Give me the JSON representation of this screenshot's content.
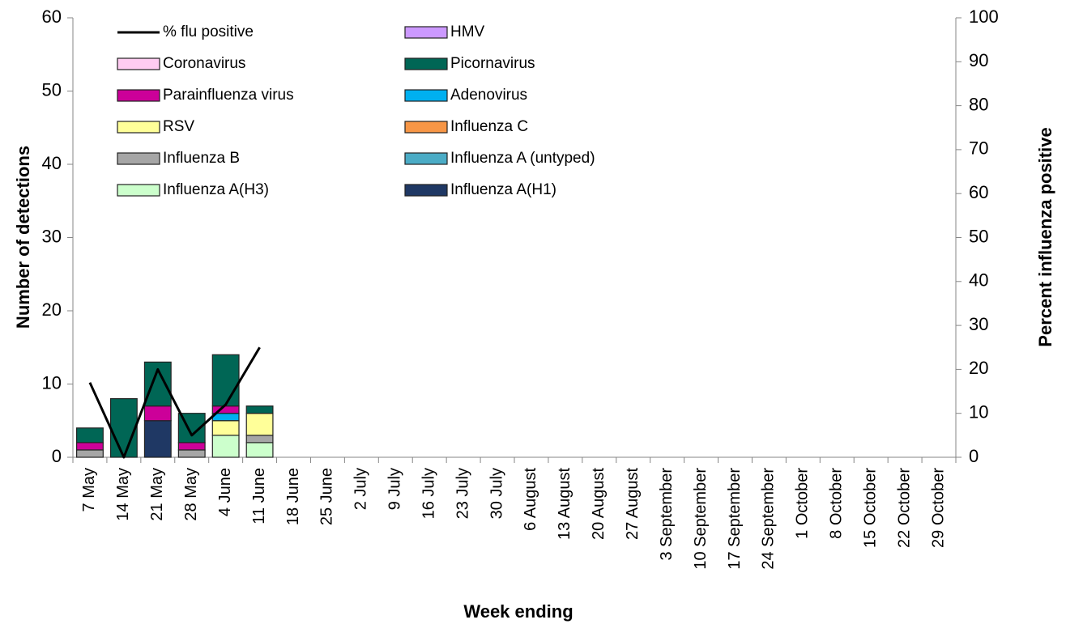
{
  "chart_data": {
    "type": "bar",
    "xlabel": "Week ending",
    "ylabel": "Number of detections",
    "y2label": "Percent influenza positive",
    "stacked": true,
    "categories": [
      "7 May",
      "14 May",
      "21 May",
      "28 May",
      "4 June",
      "11 June",
      "18 June",
      "25 June",
      "2 July",
      "9 July",
      "16 July",
      "23 July",
      "30 July",
      "6 August",
      "13 August",
      "20 August",
      "27 August",
      "3 September",
      "10 September",
      "17 September",
      "24 September",
      "1 October",
      "8 October",
      "15 October",
      "22 October",
      "29 October"
    ],
    "ylim": [
      0,
      60
    ],
    "yticks": [
      0,
      10,
      20,
      30,
      40,
      50,
      60
    ],
    "y2lim": [
      0,
      100
    ],
    "y2ticks": [
      0,
      10,
      20,
      30,
      40,
      50,
      60,
      70,
      80,
      90,
      100
    ],
    "series": [
      {
        "name": "Influenza A(H1)",
        "color": "#1f3864",
        "values": [
          0,
          0,
          5,
          0,
          0,
          0,
          null,
          null,
          null,
          null,
          null,
          null,
          null,
          null,
          null,
          null,
          null,
          null,
          null,
          null,
          null,
          null,
          null,
          null,
          null,
          null
        ]
      },
      {
        "name": "Influenza A(H3)",
        "color": "#ccffcc",
        "values": [
          0,
          0,
          0,
          0,
          3,
          2,
          null,
          null,
          null,
          null,
          null,
          null,
          null,
          null,
          null,
          null,
          null,
          null,
          null,
          null,
          null,
          null,
          null,
          null,
          null,
          null
        ]
      },
      {
        "name": "Influenza A (untyped)",
        "color": "#4bacc6",
        "values": [
          0,
          0,
          0,
          0,
          0,
          0,
          null,
          null,
          null,
          null,
          null,
          null,
          null,
          null,
          null,
          null,
          null,
          null,
          null,
          null,
          null,
          null,
          null,
          null,
          null,
          null
        ]
      },
      {
        "name": "Influenza B",
        "color": "#a6a6a6",
        "values": [
          1,
          0,
          0,
          1,
          0,
          1,
          null,
          null,
          null,
          null,
          null,
          null,
          null,
          null,
          null,
          null,
          null,
          null,
          null,
          null,
          null,
          null,
          null,
          null,
          null,
          null
        ]
      },
      {
        "name": "Influenza C",
        "color": "#f79646",
        "values": [
          0,
          0,
          0,
          0,
          0,
          0,
          null,
          null,
          null,
          null,
          null,
          null,
          null,
          null,
          null,
          null,
          null,
          null,
          null,
          null,
          null,
          null,
          null,
          null,
          null,
          null
        ]
      },
      {
        "name": "RSV",
        "color": "#ffff99",
        "values": [
          0,
          0,
          0,
          0,
          2,
          3,
          null,
          null,
          null,
          null,
          null,
          null,
          null,
          null,
          null,
          null,
          null,
          null,
          null,
          null,
          null,
          null,
          null,
          null,
          null,
          null
        ]
      },
      {
        "name": "Adenovirus",
        "color": "#00b0f0",
        "values": [
          0,
          0,
          0,
          0,
          1,
          0,
          null,
          null,
          null,
          null,
          null,
          null,
          null,
          null,
          null,
          null,
          null,
          null,
          null,
          null,
          null,
          null,
          null,
          null,
          null,
          null
        ]
      },
      {
        "name": "Parainfluenza virus",
        "color": "#cc0099",
        "values": [
          1,
          0,
          2,
          1,
          1,
          0,
          null,
          null,
          null,
          null,
          null,
          null,
          null,
          null,
          null,
          null,
          null,
          null,
          null,
          null,
          null,
          null,
          null,
          null,
          null,
          null
        ]
      },
      {
        "name": "Picornavirus",
        "color": "#006655",
        "values": [
          2,
          8,
          6,
          4,
          7,
          1,
          null,
          null,
          null,
          null,
          null,
          null,
          null,
          null,
          null,
          null,
          null,
          null,
          null,
          null,
          null,
          null,
          null,
          null,
          null,
          null
        ]
      },
      {
        "name": "Coronavirus",
        "color": "#ffccf2",
        "values": [
          0,
          0,
          0,
          0,
          0,
          0,
          null,
          null,
          null,
          null,
          null,
          null,
          null,
          null,
          null,
          null,
          null,
          null,
          null,
          null,
          null,
          null,
          null,
          null,
          null,
          null
        ]
      },
      {
        "name": "HMV",
        "color": "#cc99ff",
        "values": [
          0,
          0,
          0,
          0,
          0,
          0,
          null,
          null,
          null,
          null,
          null,
          null,
          null,
          null,
          null,
          null,
          null,
          null,
          null,
          null,
          null,
          null,
          null,
          null,
          null,
          null
        ]
      },
      {
        "name": "% flu positive",
        "type": "line",
        "axis": "y2",
        "color": "#000000",
        "values": [
          17,
          0,
          20,
          5,
          12,
          25,
          null,
          null,
          null,
          null,
          null,
          null,
          null,
          null,
          null,
          null,
          null,
          null,
          null,
          null,
          null,
          null,
          null,
          null,
          null,
          null
        ]
      }
    ]
  }
}
